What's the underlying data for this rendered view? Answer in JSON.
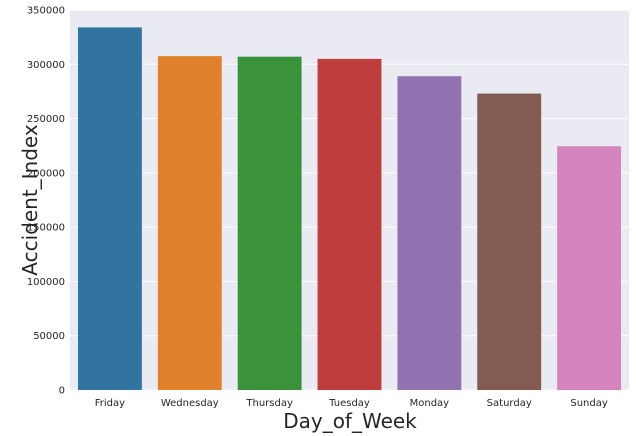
{
  "chart_data": {
    "type": "bar",
    "title": "",
    "xlabel": "Day_of_Week",
    "ylabel": "Accident_Index",
    "categories": [
      "Friday",
      "Wednesday",
      "Thursday",
      "Tuesday",
      "Monday",
      "Saturday",
      "Sunday"
    ],
    "values": [
      334000,
      307500,
      307000,
      305000,
      289000,
      273000,
      224500
    ],
    "colors": [
      "#3274a1",
      "#e1812c",
      "#3a923a",
      "#c03d3e",
      "#9372b2",
      "#845b53",
      "#d684bd"
    ],
    "ylim": [
      0,
      350000
    ],
    "yticks": [
      0,
      50000,
      100000,
      150000,
      200000,
      250000,
      300000,
      350000
    ],
    "ytick_labels": [
      "0",
      "50000",
      "100000",
      "150000",
      "200000",
      "250000",
      "300000",
      "350000"
    ],
    "grid": true,
    "background": "#eaeaf2"
  }
}
